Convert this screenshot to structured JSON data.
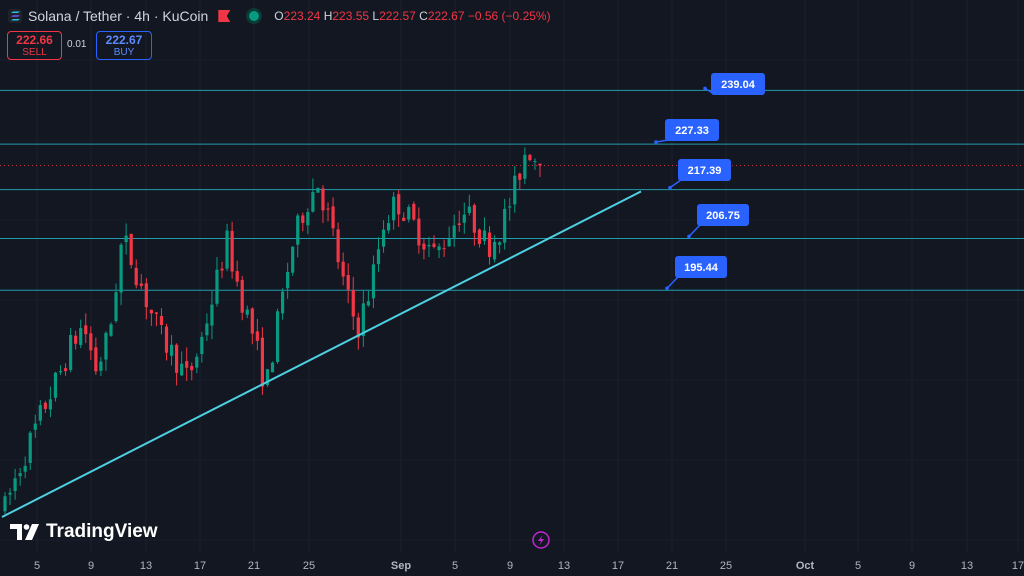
{
  "header": {
    "symbol": "Solana / Tether · 4h · KuCoin",
    "ohlc": {
      "o_label": "O",
      "o": "223.24",
      "h_label": "H",
      "h": "223.55",
      "l_label": "L",
      "l": "222.57",
      "c_label": "C",
      "c": "222.67",
      "change": "−0.56 (−0.25%)"
    }
  },
  "trade": {
    "sell_price": "222.66",
    "sell_label": "SELL",
    "spread": "0.01",
    "buy_price": "222.67",
    "buy_label": "BUY"
  },
  "branding": {
    "name": "TradingView"
  },
  "icons": [
    "solana-logo-icon",
    "flag-icon",
    "market-status-icon",
    "lightning-icon",
    "tradingview-logo-icon"
  ],
  "colors": {
    "background": "#131722",
    "up": "#089981",
    "down": "#f23645",
    "level_line": "#26c6da",
    "trend_line": "#4dd0e1",
    "label_bg": "#2962ff"
  },
  "chart_data": {
    "type": "candlestick",
    "interval": "4h",
    "x_axis": {
      "tick_labels": [
        "5",
        "9",
        "13",
        "17",
        "21",
        "25",
        "Sep",
        "5",
        "9",
        "13",
        "17",
        "21",
        "25",
        "Oct",
        "5",
        "9",
        "13",
        "17"
      ]
    },
    "levels": [
      {
        "price": 239.04,
        "label": "239.04"
      },
      {
        "price": 227.33,
        "label": "227.33"
      },
      {
        "price": 217.39,
        "label": "217.39"
      },
      {
        "price": 206.75,
        "label": "206.75"
      },
      {
        "price": 195.44,
        "label": "195.44"
      }
    ],
    "trendline": {
      "from_price": 146,
      "to_price": 217
    },
    "last_price": 222.67,
    "price_path": [
      148,
      156,
      163,
      170,
      176,
      183,
      188,
      178,
      186,
      207,
      200,
      192,
      185,
      181,
      176,
      184,
      195,
      206,
      195,
      186,
      174,
      190,
      205,
      214,
      219,
      209,
      196,
      187,
      196,
      210,
      215,
      211,
      207,
      203,
      208,
      213,
      210,
      205,
      209,
      217,
      227,
      223
    ]
  }
}
